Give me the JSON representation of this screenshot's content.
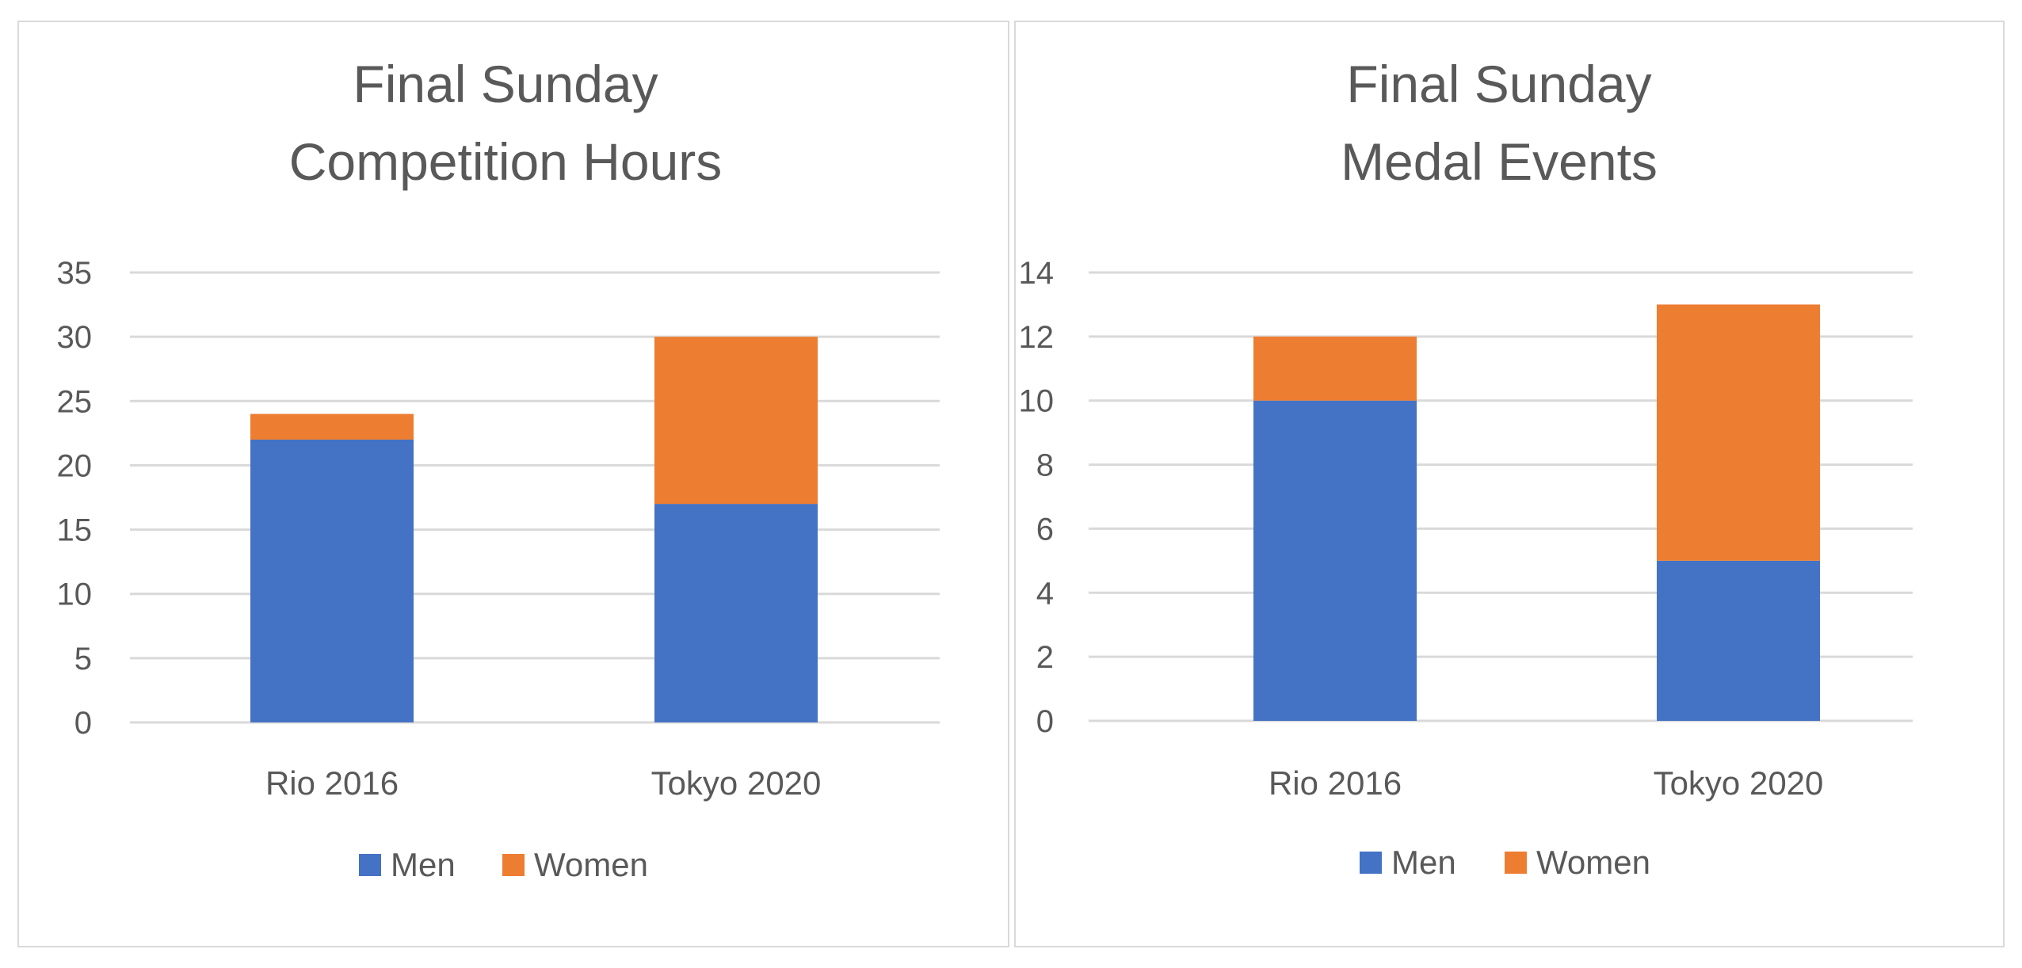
{
  "colors": {
    "men": "#4472c4",
    "women": "#ed7d31",
    "grid": "#d9d9d9",
    "text": "#595959"
  },
  "chart_data": [
    {
      "type": "bar",
      "stacked": true,
      "title_lines": [
        "Final Sunday",
        "Competition Hours"
      ],
      "categories": [
        "Rio 2016",
        "Tokyo 2020"
      ],
      "series": [
        {
          "name": "Men",
          "values": [
            22,
            17
          ]
        },
        {
          "name": "Women",
          "values": [
            2,
            13
          ]
        }
      ],
      "ylim": [
        0,
        35
      ],
      "yticks": [
        0,
        5,
        10,
        15,
        20,
        25,
        30,
        35
      ],
      "grid": true,
      "legend_position": "bottom"
    },
    {
      "type": "bar",
      "stacked": true,
      "title_lines": [
        "Final Sunday",
        "Medal Events"
      ],
      "categories": [
        "Rio 2016",
        "Tokyo 2020"
      ],
      "series": [
        {
          "name": "Men",
          "values": [
            10,
            5
          ]
        },
        {
          "name": "Women",
          "values": [
            2,
            8
          ]
        }
      ],
      "ylim": [
        0,
        14
      ],
      "yticks": [
        0,
        2,
        4,
        6,
        8,
        10,
        12,
        14
      ],
      "grid": true,
      "legend_position": "bottom"
    }
  ]
}
